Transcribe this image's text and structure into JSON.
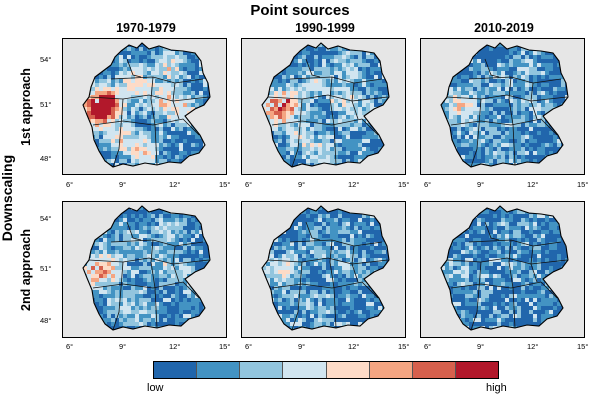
{
  "title": "Point sources",
  "columns": [
    "1970-1979",
    "1990-1999",
    "2010-2019"
  ],
  "rows": [
    "1st approach",
    "2nd approach"
  ],
  "row_group_label": "Downscaling",
  "x_ticks": [
    "6°",
    "9°",
    "12°",
    "15°"
  ],
  "y_ticks": [
    "54°",
    "51°",
    "48°"
  ],
  "legend": {
    "low_label": "low",
    "high_label": "high",
    "colors": [
      "#2166ac",
      "#4393c3",
      "#92c5de",
      "#d1e5f0",
      "#fddbc7",
      "#f4a582",
      "#d6604d",
      "#b2182b"
    ]
  },
  "background_color": "#e6e6e6",
  "panels": [
    {
      "row": "1st approach",
      "column": "1970-1979",
      "intensity": 0.8
    },
    {
      "row": "1st approach",
      "column": "1990-1999",
      "intensity": 0.55
    },
    {
      "row": "1st approach",
      "column": "2010-2019",
      "intensity": 0.3
    },
    {
      "row": "2nd approach",
      "column": "1970-1979",
      "intensity": 0.45
    },
    {
      "row": "2nd approach",
      "column": "1990-1999",
      "intensity": 0.3
    },
    {
      "row": "2nd approach",
      "column": "2010-2019",
      "intensity": 0.15
    }
  ]
}
